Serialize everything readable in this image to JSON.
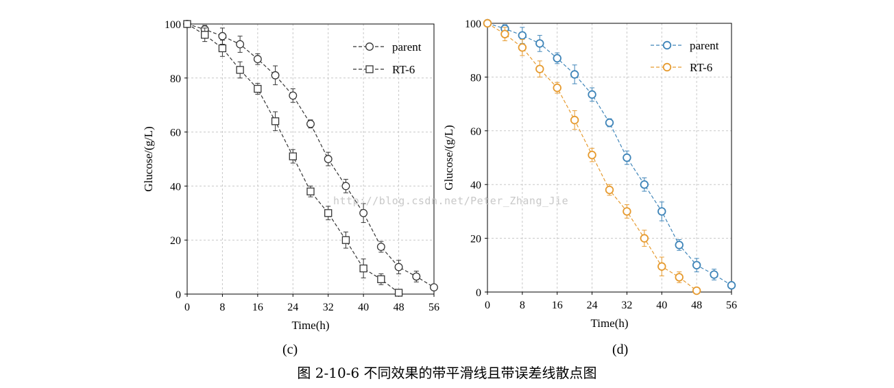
{
  "caption": "图 2-10-6 不同效果的带平滑线且带误差线散点图",
  "watermark": "http://blog.csdn.net/Peter_Zhang_Jie",
  "panels": [
    "(c)",
    "(d)"
  ],
  "chart_data": [
    {
      "type": "scatter",
      "panel_label": "(c)",
      "xlabel": "Time(h)",
      "ylabel": "Glucose/(g/L)",
      "xlim": [
        0,
        56
      ],
      "ylim": [
        0,
        100
      ],
      "xticks": [
        0,
        8,
        16,
        24,
        32,
        40,
        48,
        56
      ],
      "yticks": [
        0,
        20,
        40,
        60,
        80,
        100
      ],
      "grid": true,
      "legend_position": "top-right",
      "series": [
        {
          "name": "parent",
          "marker": "circle",
          "color": "#333333",
          "x": [
            0,
            4,
            8,
            12,
            16,
            20,
            24,
            28,
            32,
            36,
            40,
            44,
            48,
            52,
            56
          ],
          "y": [
            100,
            98,
            95.5,
            92.5,
            87,
            81,
            73.5,
            63,
            50,
            40,
            30,
            17.5,
            10,
            6.5,
            2.5
          ],
          "err": [
            0,
            1.5,
            3,
            3,
            2,
            3.5,
            2.5,
            1.5,
            2.5,
            2.5,
            3.5,
            2,
            2.5,
            2,
            0.5
          ]
        },
        {
          "name": "RT-6",
          "marker": "square",
          "color": "#333333",
          "x": [
            0,
            4,
            8,
            12,
            16,
            20,
            24,
            28,
            32,
            36,
            40,
            44,
            48
          ],
          "y": [
            100,
            96,
            91,
            83,
            76,
            64,
            51,
            38,
            30,
            20,
            9.5,
            5.5,
            0.5
          ],
          "err": [
            0,
            2.5,
            3,
            3,
            2,
            3.5,
            2.5,
            2,
            2.5,
            3,
            3.5,
            2,
            0.5
          ]
        }
      ]
    },
    {
      "type": "scatter",
      "panel_label": "(d)",
      "xlabel": "Time(h)",
      "ylabel": "Glucose/(g/L)",
      "xlim": [
        0,
        56
      ],
      "ylim": [
        0,
        100
      ],
      "xticks": [
        0,
        8,
        16,
        24,
        32,
        40,
        48,
        56
      ],
      "yticks": [
        0,
        20,
        40,
        60,
        80,
        100
      ],
      "grid": true,
      "legend_position": "top-right",
      "series": [
        {
          "name": "parent",
          "marker": "circle",
          "color": "#3e84b8",
          "x": [
            0,
            4,
            8,
            12,
            16,
            20,
            24,
            28,
            32,
            36,
            40,
            44,
            48,
            52,
            56
          ],
          "y": [
            100,
            98,
            95.5,
            92.5,
            87,
            81,
            73.5,
            63,
            50,
            40,
            30,
            17.5,
            10,
            6.5,
            2.5
          ],
          "err": [
            0,
            1.5,
            3,
            3,
            2,
            3.5,
            2.5,
            1.5,
            2.5,
            2.5,
            3.5,
            2,
            2.5,
            2,
            0.5
          ]
        },
        {
          "name": "RT-6",
          "marker": "circle",
          "color": "#e69a2e",
          "x": [
            0,
            4,
            8,
            12,
            16,
            20,
            24,
            28,
            32,
            36,
            40,
            44,
            48
          ],
          "y": [
            100,
            96,
            91,
            83,
            76,
            64,
            51,
            38,
            30,
            20,
            9.5,
            5.5,
            0.5
          ],
          "err": [
            0,
            2.5,
            3,
            3,
            2,
            3.5,
            2.5,
            2,
            2.5,
            3,
            3.5,
            2,
            0.5
          ]
        }
      ]
    }
  ]
}
